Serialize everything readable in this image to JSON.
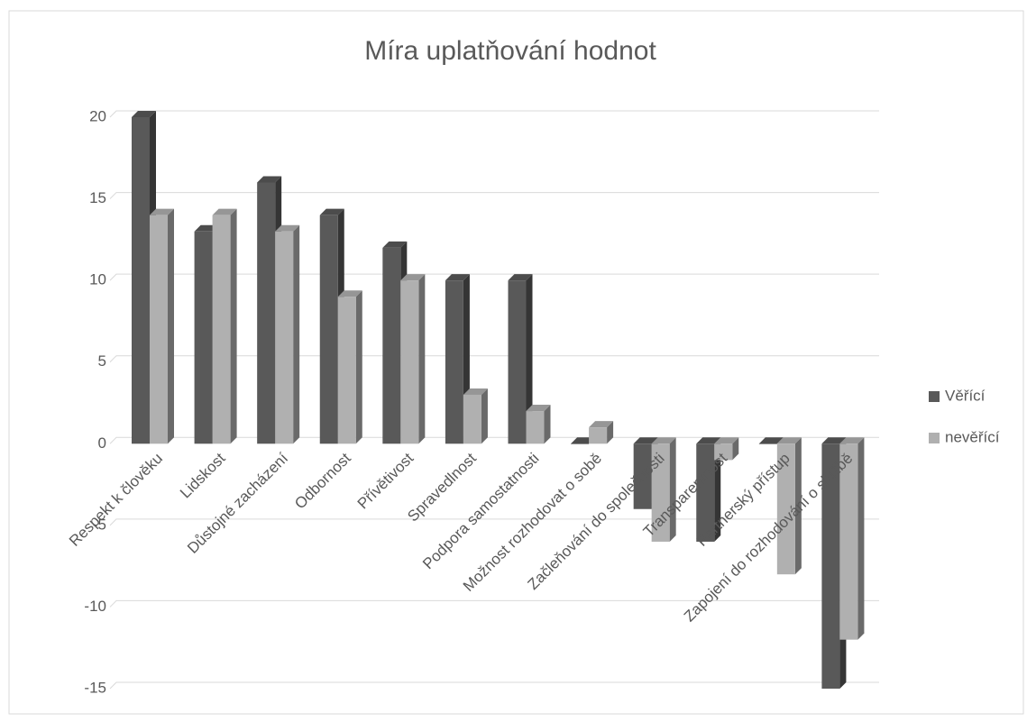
{
  "chart_data": {
    "type": "bar",
    "title": "Míra uplatňování hodnot",
    "categories": [
      "Respekt k člověku",
      "Lidskost",
      "Důstojné zacházení",
      "Odbornost",
      "Přívětivost",
      "Spravedlnost",
      "Podpora samostatnosti",
      "Možnost rozhodovat o sobě",
      "Začleňování do společnosti",
      "Transparentnost",
      "Partnerský přístup",
      "Zapojení do rozhodování o službě"
    ],
    "series": [
      {
        "name": "Věřící",
        "color": "#595959",
        "values": [
          20,
          13,
          16,
          14,
          12,
          10,
          10,
          0,
          -4,
          -6,
          0,
          -15
        ]
      },
      {
        "name": "nevěřící",
        "color": "#b0b0b0",
        "values": [
          14,
          14,
          13,
          9,
          10,
          3,
          2,
          1,
          -6,
          -1,
          -8,
          -12
        ]
      }
    ],
    "ylim": [
      -15,
      20
    ],
    "yticks": [
      -15,
      -10,
      -5,
      0,
      5,
      10,
      15,
      20
    ],
    "grid": true,
    "legend": "right"
  }
}
